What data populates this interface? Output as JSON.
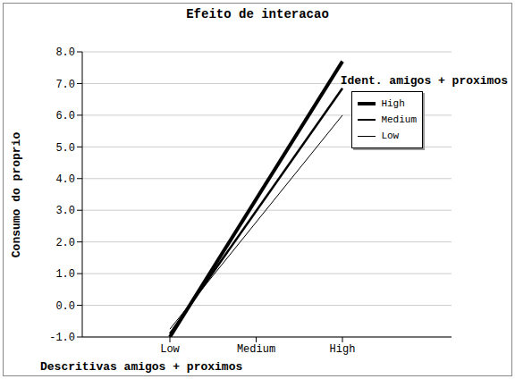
{
  "chart_data": {
    "type": "line",
    "title": "Efeito de interacao",
    "xlabel": "Descritivas amigos + proximos",
    "ylabel": "Consumo do proprio",
    "legend_title": "Ident. amigos + proximos",
    "categories": [
      "Low",
      "Medium",
      "High"
    ],
    "series": [
      {
        "name": "High",
        "color": "#000000",
        "values": [
          -1.0,
          null,
          7.7
        ]
      },
      {
        "name": "Medium",
        "color": "#000000",
        "values": [
          -0.9,
          null,
          6.85
        ]
      },
      {
        "name": "Low",
        "color": "#000000",
        "values": [
          -0.75,
          null,
          6.0
        ]
      }
    ],
    "ylim": [
      -1,
      8
    ],
    "yticks": [
      {
        "value": -1,
        "label": "-1.0"
      },
      {
        "value": 0,
        "label": "0.0"
      },
      {
        "value": 1,
        "label": "1.0"
      },
      {
        "value": 2,
        "label": "2.0"
      },
      {
        "value": 3,
        "label": "3.0"
      },
      {
        "value": 4,
        "label": "4.0"
      },
      {
        "value": 5,
        "label": "5.0"
      },
      {
        "value": 6,
        "label": "6.0"
      },
      {
        "value": 7,
        "label": "7.0"
      },
      {
        "value": 8,
        "label": "8.0"
      }
    ],
    "grid": true,
    "legend": "upper right"
  }
}
